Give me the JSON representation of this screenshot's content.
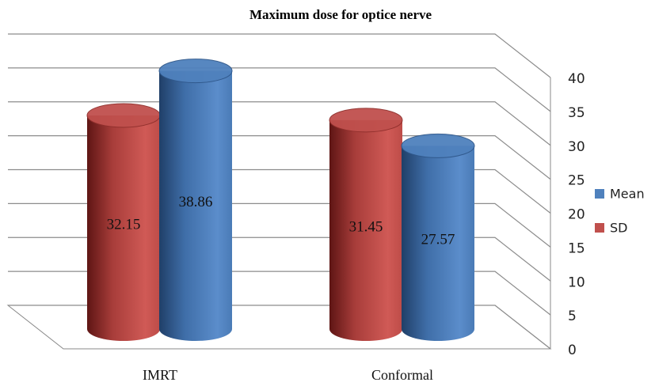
{
  "chart_data": {
    "type": "cylinder-bar",
    "title": "Maximum dose for optice nerve",
    "categories": [
      "IMRT",
      "Conformal"
    ],
    "series": [
      {
        "name": "Mean",
        "color": "#4f81bd",
        "values": [
          38.86,
          27.57
        ]
      },
      {
        "name": "SD",
        "color": "#c0504d",
        "values": [
          32.15,
          31.45
        ]
      }
    ],
    "ylim": [
      0,
      40
    ],
    "yticks": [
      0,
      5,
      10,
      15,
      20,
      25,
      30,
      35,
      40
    ],
    "grid": true,
    "legend": "right"
  }
}
